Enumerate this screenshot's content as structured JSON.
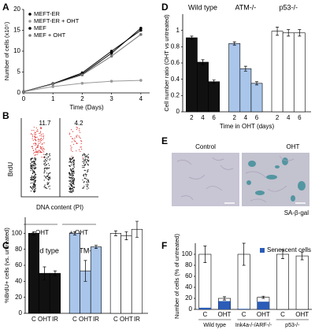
{
  "chart_data": [
    {
      "panel": "A",
      "type": "line",
      "xlabel": "Time (Days)",
      "ylabel": "Number of cells (x10⁵)",
      "x": [
        0,
        1,
        2,
        3,
        4
      ],
      "xlim": [
        0,
        4.3
      ],
      "xticks": [
        0,
        1,
        2,
        3,
        4
      ],
      "ylim": [
        0,
        20
      ],
      "yticks": [
        0,
        5,
        10,
        15,
        20
      ],
      "series": [
        {
          "name": "MEFT-ER",
          "color": "#000000",
          "values": [
            0.3,
            2.2,
            4.5,
            9.5,
            15.5
          ]
        },
        {
          "name": "MEFT-ER + OHT",
          "color": "#999999",
          "values": [
            0.3,
            1.5,
            2.3,
            2.8,
            3.0
          ]
        },
        {
          "name": "MEF",
          "color": "#000000",
          "values": [
            0.3,
            2.2,
            4.8,
            10,
            15
          ]
        },
        {
          "name": "MEF + OHT",
          "color": "#777777",
          "values": [
            0.3,
            2.1,
            4.3,
            8.8,
            14
          ]
        }
      ]
    },
    {
      "panel": "C",
      "type": "bar",
      "ylabel": "%BrdU+ cells (vs. untreated)",
      "categories": [
        "C",
        "OHT",
        "IR"
      ],
      "ylim": [
        0,
        120
      ],
      "yticks": [
        0,
        20,
        40,
        60,
        80,
        100
      ],
      "series": [
        {
          "name": "Wild type",
          "color": "#111111",
          "values": [
            100,
            50,
            50
          ],
          "errors": [
            2,
            8,
            3
          ]
        },
        {
          "name": "ATM-/-",
          "color": "#a9c5ea",
          "values": [
            100,
            53,
            83
          ],
          "errors": [
            2,
            13,
            2
          ]
        },
        {
          "name": "p53-/-",
          "color": "#ffffff",
          "values": [
            100,
            97,
            105
          ],
          "errors": [
            3,
            5,
            10
          ]
        }
      ]
    },
    {
      "panel": "D",
      "type": "bar",
      "ylabel": "Cell number ratio (OHT vs untreated)",
      "xlabel": "Time in OHT (days)",
      "categories": [
        "2",
        "4",
        "6"
      ],
      "ylim": [
        0,
        1.2
      ],
      "yticks": [
        0,
        0.2,
        0.4,
        0.6,
        0.8,
        1
      ],
      "series": [
        {
          "name": "Wild type",
          "color": "#111111",
          "values": [
            0.91,
            0.61,
            0.37
          ],
          "errors": [
            0.02,
            0.03,
            0.02
          ]
        },
        {
          "name": "ATM-/-",
          "color": "#a9c5ea",
          "values": [
            0.84,
            0.53,
            0.35
          ],
          "errors": [
            0.02,
            0.03,
            0.02
          ]
        },
        {
          "name": "p53-/-",
          "color": "#ffffff",
          "values": [
            0.99,
            0.97,
            0.97
          ],
          "errors": [
            0.05,
            0.04,
            0.04
          ]
        }
      ]
    },
    {
      "panel": "F",
      "type": "grouped-overlay-bar",
      "ylabel": "Number of cells (% of untreated)",
      "groups": [
        "Wild type",
        "Ink4a-/-/ARF-/-",
        "p53-/-"
      ],
      "categories": [
        "C",
        "OHT",
        "C",
        "OHT",
        "C",
        "OHT"
      ],
      "ylim": [
        0,
        120
      ],
      "yticks": [
        0,
        20,
        40,
        60,
        80,
        100
      ],
      "legend": "upper right",
      "series": [
        {
          "color": "#ffffff",
          "values": [
            100,
            20,
            100,
            22,
            100,
            97
          ],
          "errors": [
            15,
            3,
            20,
            2,
            8,
            7
          ]
        },
        {
          "name": "Senescent cells",
          "color": "#2a5cb8",
          "values": [
            3,
            15,
            1,
            14,
            0,
            0
          ]
        }
      ]
    }
  ],
  "flow_panel": {
    "label": "B",
    "ylabel": "BrdU",
    "xlabel": "DNA content (PI)",
    "conditions": [
      "- OHT",
      "+ OHT"
    ],
    "percentages": [
      11.7,
      4.2
    ]
  },
  "image_panel": {
    "label": "E",
    "titles": [
      "Control",
      "OHT"
    ],
    "stain": "SA-β-gal"
  }
}
